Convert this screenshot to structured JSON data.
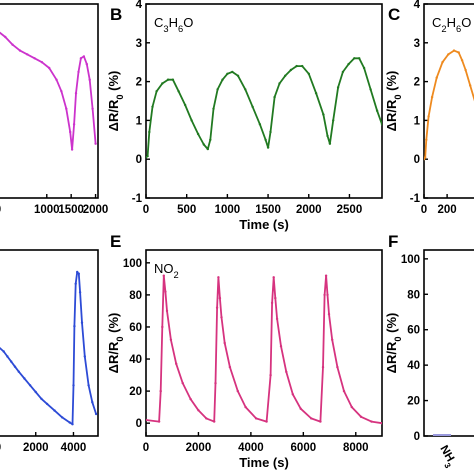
{
  "chart_data": [
    {
      "panel": "A",
      "type": "line",
      "gas_label": "",
      "color": "#cc33cc",
      "xlabel": "",
      "ylabel": "",
      "xlim": [
        0,
        2050
      ],
      "ylim": [
        -1,
        4
      ],
      "xticks": [
        {
          "v": 0,
          "label": "0"
        },
        {
          "v": 1000,
          "label": "1000"
        },
        {
          "v": 1500,
          "label": "1500"
        },
        {
          "v": 2000,
          "label": "2000"
        }
      ],
      "yticks": [],
      "series": [
        {
          "x": [
            0,
            150,
            300,
            450,
            600,
            750,
            900,
            1050,
            1200,
            1300,
            1400,
            1480,
            1520,
            1560,
            1600,
            1650,
            1700,
            1760,
            1820,
            1880,
            1940,
            2000
          ],
          "y": [
            3.3,
            3.15,
            2.95,
            2.8,
            2.7,
            2.6,
            2.5,
            2.35,
            2.05,
            1.75,
            1.3,
            0.7,
            0.25,
            0.9,
            1.7,
            2.25,
            2.6,
            2.65,
            2.45,
            2.05,
            1.3,
            0.4
          ]
        }
      ]
    },
    {
      "panel": "B",
      "type": "line",
      "gas_label": "C₃H₆O",
      "color": "#217a21",
      "xlabel": "Time (s)",
      "ylabel": "ΔR/R₀ (%)",
      "xlim": [
        0,
        2900
      ],
      "ylim": [
        -1,
        4
      ],
      "xticks": [
        {
          "v": 0,
          "label": "0"
        },
        {
          "v": 500,
          "label": "500"
        },
        {
          "v": 1000,
          "label": "1000"
        },
        {
          "v": 1500,
          "label": "1500"
        },
        {
          "v": 2000,
          "label": "2000"
        },
        {
          "v": 2500,
          "label": "2500"
        }
      ],
      "yticks": [
        {
          "v": -1,
          "label": "-1"
        },
        {
          "v": 0,
          "label": "0"
        },
        {
          "v": 1,
          "label": "1"
        },
        {
          "v": 2,
          "label": "2"
        },
        {
          "v": 3,
          "label": "3"
        },
        {
          "v": 4,
          "label": "4"
        }
      ],
      "series": [
        {
          "x": [
            0,
            20,
            40,
            80,
            130,
            200,
            270,
            330,
            400,
            480,
            560,
            640,
            710,
            760,
            790,
            830,
            880,
            940,
            1000,
            1060,
            1130,
            1220,
            1310,
            1400,
            1470,
            1500,
            1530,
            1580,
            1640,
            1710,
            1780,
            1850,
            1920,
            2000,
            2090,
            2180,
            2230,
            2260,
            2300,
            2360,
            2420,
            2490,
            2560,
            2620,
            2680,
            2760,
            2840,
            2900
          ],
          "y": [
            0.05,
            0.08,
            0.7,
            1.35,
            1.75,
            1.95,
            2.05,
            2.05,
            1.75,
            1.4,
            1.0,
            0.65,
            0.38,
            0.26,
            0.5,
            1.3,
            1.8,
            2.05,
            2.2,
            2.25,
            2.15,
            1.8,
            1.35,
            0.9,
            0.5,
            0.3,
            0.7,
            1.6,
            1.95,
            2.15,
            2.3,
            2.4,
            2.4,
            2.2,
            1.7,
            1.15,
            0.6,
            0.4,
            1.0,
            1.85,
            2.25,
            2.45,
            2.6,
            2.6,
            2.35,
            1.8,
            1.25,
            0.9
          ]
        }
      ]
    },
    {
      "panel": "C",
      "type": "line",
      "gas_label": "C₂H₆O",
      "color": "#ee8a1f",
      "xlabel": "",
      "ylabel": "ΔR/R₀ (%)",
      "xlim": [
        0,
        450
      ],
      "ylim": [
        -1,
        4
      ],
      "xticks": [
        {
          "v": 0,
          "label": "0"
        },
        {
          "v": 200,
          "label": "200"
        }
      ],
      "yticks": [
        {
          "v": -1,
          "label": "-1"
        },
        {
          "v": 0,
          "label": "0"
        },
        {
          "v": 1,
          "label": "1"
        },
        {
          "v": 2,
          "label": "2"
        },
        {
          "v": 3,
          "label": "3"
        },
        {
          "v": 4,
          "label": "4"
        }
      ],
      "series": [
        {
          "x": [
            0,
            10,
            20,
            40,
            70,
            110,
            160,
            210,
            260,
            300,
            330,
            360,
            400,
            450
          ],
          "y": [
            0.0,
            0.05,
            0.5,
            1.1,
            1.6,
            2.1,
            2.5,
            2.7,
            2.8,
            2.75,
            2.55,
            2.3,
            1.9,
            1.4
          ]
        }
      ]
    },
    {
      "panel": "D",
      "type": "line",
      "gas_label": "",
      "color": "#2d4bd6",
      "xlabel": "",
      "ylabel": "",
      "xlim": [
        0,
        5300
      ],
      "ylim": [
        -5,
        105
      ],
      "xticks": [
        {
          "v": 0,
          "label": "0"
        },
        {
          "v": 2000,
          "label": "2000"
        },
        {
          "v": 4000,
          "label": "4000"
        }
      ],
      "yticks": [],
      "series": [
        {
          "x": [
            0,
            300,
            500,
            700,
            900,
            1100,
            1400,
            1700,
            2000,
            2300,
            2600,
            3000,
            3400,
            3800,
            3950,
            4000,
            4050,
            4120,
            4200,
            4280,
            4350,
            4450,
            4600,
            4800,
            5000,
            5200
          ],
          "y": [
            48,
            45,
            42,
            39,
            36,
            33,
            29,
            25,
            21,
            17,
            14,
            10,
            6,
            3,
            2,
            25,
            60,
            85,
            92,
            91,
            80,
            62,
            42,
            25,
            15,
            8
          ]
        }
      ]
    },
    {
      "panel": "E",
      "type": "line",
      "gas_label": "NO₂",
      "color": "#d6337f",
      "xlabel": "Time (s)",
      "ylabel": "ΔR/R₀ (%)",
      "xlim": [
        0,
        9000
      ],
      "ylim": [
        -8,
        108
      ],
      "xticks": [
        {
          "v": 0,
          "label": "0"
        },
        {
          "v": 2000,
          "label": "2000"
        },
        {
          "v": 4000,
          "label": "4000"
        },
        {
          "v": 6000,
          "label": "6000"
        },
        {
          "v": 8000,
          "label": "8000"
        }
      ],
      "yticks": [
        {
          "v": 0,
          "label": "0"
        },
        {
          "v": 20,
          "label": "20"
        },
        {
          "v": 40,
          "label": "40"
        },
        {
          "v": 60,
          "label": "60"
        },
        {
          "v": 80,
          "label": "80"
        },
        {
          "v": 100,
          "label": "100"
        }
      ],
      "series": [
        {
          "x": [
            0,
            500,
            560,
            620,
            680,
            740,
            800,
            950,
            1150,
            1400,
            1700,
            2000,
            2300,
            2600,
            2650,
            2710,
            2760,
            2820,
            2880,
            3000,
            3200,
            3500,
            3800,
            4200,
            4600,
            4750,
            4810,
            4870,
            4930,
            5000,
            5150,
            5350,
            5600,
            5900,
            6300,
            6650,
            6750,
            6810,
            6870,
            6920,
            6980,
            7100,
            7300,
            7550,
            7850,
            8200,
            8600,
            9000
          ],
          "y": [
            2,
            1,
            20,
            60,
            92,
            82,
            70,
            52,
            37,
            25,
            15,
            8,
            3,
            1,
            25,
            72,
            91,
            78,
            66,
            50,
            35,
            20,
            10,
            3,
            1,
            30,
            75,
            91,
            78,
            65,
            48,
            32,
            18,
            9,
            3,
            1,
            35,
            80,
            92,
            80,
            68,
            52,
            35,
            20,
            10,
            4,
            1,
            0
          ]
        }
      ]
    },
    {
      "panel": "F",
      "type": "bar",
      "gas_label": "",
      "color": "#9999dd",
      "xlabel": "",
      "ylabel": "ΔR/R₀ (%)",
      "ylim": [
        0,
        105
      ],
      "categories": [
        "NH₃"
      ],
      "values": [
        0.5
      ],
      "yticks": [
        {
          "v": 0,
          "label": "0"
        },
        {
          "v": 20,
          "label": "20"
        },
        {
          "v": 40,
          "label": "40"
        },
        {
          "v": 60,
          "label": "60"
        },
        {
          "v": 80,
          "label": "80"
        },
        {
          "v": 100,
          "label": "100"
        }
      ]
    }
  ]
}
